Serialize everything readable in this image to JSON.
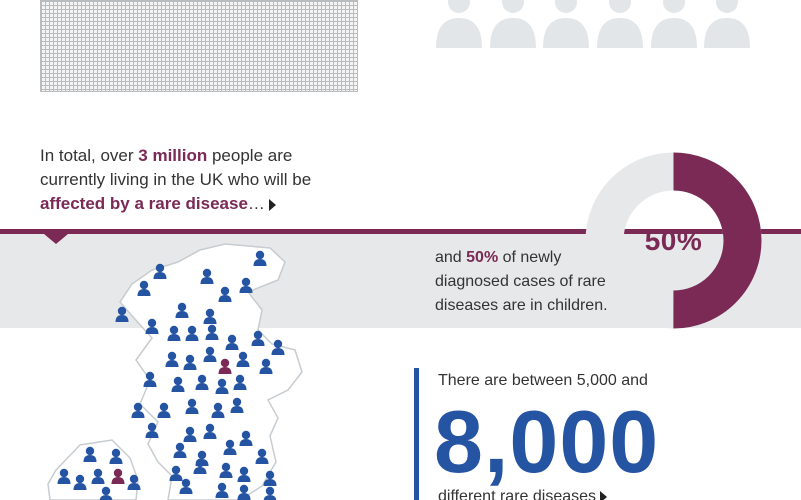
{
  "intro": {
    "prefix": "In total, over ",
    "highlight": "3 million",
    "middle": " people are currently living in the UK who will be ",
    "emphasis": "affected by a rare disease",
    "ellipsis": "…"
  },
  "children": {
    "percent_label": "50%",
    "percent_value": 50,
    "prefix": "and ",
    "highlight": "50%",
    "text": " of newly diagnosed cases of rare diseases are in children."
  },
  "stat": {
    "lead": "There are between 5,000 and",
    "number": "8,000",
    "tail": "different rare diseases"
  },
  "colors": {
    "accent": "#7a2a55",
    "blue": "#2554a3",
    "grey_band": "#e6e8e9",
    "grey_person": "#e3e6e8"
  },
  "icons": {
    "grey_people_count": 6,
    "people_icon": "person-icon"
  }
}
